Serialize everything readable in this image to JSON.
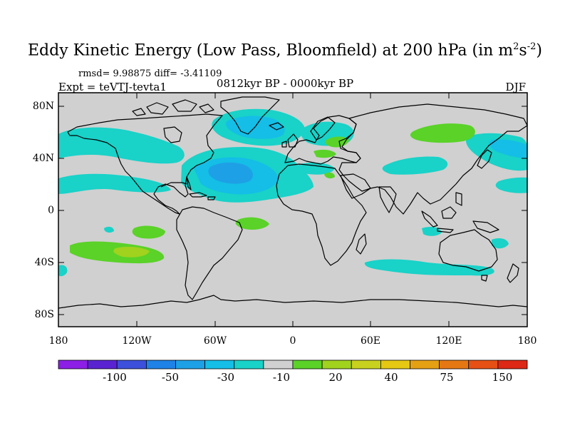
{
  "title": {
    "main": "Eddy Kinetic Energy (Low Pass, Bloomfield) at 200 hPa (in m",
    "sup1": "2",
    "mid": "s",
    "sup2": "-2",
    "end": ")"
  },
  "stats": "rmsd= 9.98875 diff= -3.41109",
  "experiment": "Expt = teVTJ-tevta1",
  "period": "0812kyr BP - 0000kyr BP",
  "season": "DJF",
  "map": {
    "projection": "cylindrical equidistant",
    "lon_range": [
      -180,
      180
    ],
    "lat_range": [
      -90,
      90
    ],
    "background_color": "#d0d0d0",
    "y_ticks": [
      "80N",
      "40N",
      "0",
      "40S",
      "80S"
    ],
    "x_ticks": [
      "180",
      "120W",
      "60W",
      "0",
      "60E",
      "120E",
      "180"
    ]
  },
  "colorbar": {
    "colors": [
      "#8c1ee6",
      "#5a23d2",
      "#3c50dc",
      "#1e82e6",
      "#1ea0e6",
      "#14bee6",
      "#19d2c8",
      "#d0d0d0",
      "#5ad228",
      "#a0d21e",
      "#c8d21e",
      "#e6c814",
      "#e6a014",
      "#e67814",
      "#e65014",
      "#dc2814"
    ],
    "labels": [
      "-100",
      "-50",
      "-30",
      "-10",
      "20",
      "40",
      "75",
      "150"
    ]
  }
}
